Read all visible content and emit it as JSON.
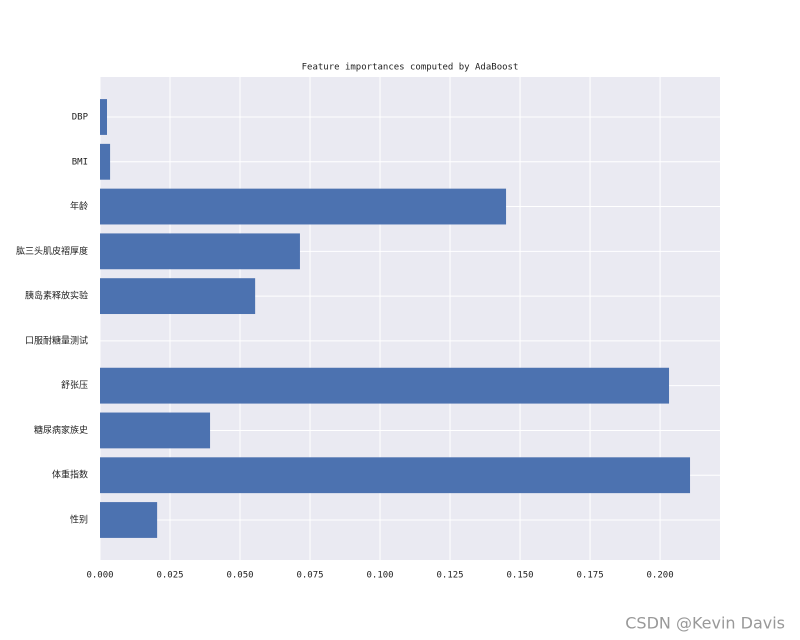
{
  "chart_data": {
    "type": "barh",
    "title": "Feature importances computed by AdaBoost",
    "categories": [
      "性别",
      "体重指数",
      "糖尿病家族史",
      "舒张压",
      "口服耐糖量测试",
      "胰岛素释放实验",
      "肱三头肌皮褶厚度",
      "年龄",
      "BMI",
      "DBP"
    ],
    "values": [
      0.0204,
      0.2107,
      0.0393,
      0.2032,
      0.0,
      0.0554,
      0.0714,
      0.145,
      0.0036,
      0.0025
    ],
    "color": "#4c72b0",
    "xlim": [
      0,
      0.2214
    ],
    "xticks": [
      {
        "value": 0,
        "label": "0.000"
      },
      {
        "value": 0.025,
        "label": "0.025"
      },
      {
        "value": 0.05,
        "label": "0.050"
      },
      {
        "value": 0.075,
        "label": "0.075"
      },
      {
        "value": 0.1,
        "label": "0.100"
      },
      {
        "value": 0.125,
        "label": "0.125"
      },
      {
        "value": 0.15,
        "label": "0.150"
      },
      {
        "value": 0.175,
        "label": "0.175"
      },
      {
        "value": 0.2,
        "label": "0.200"
      }
    ],
    "grid": true
  },
  "watermark": "CSDN @Kevin  Davis"
}
